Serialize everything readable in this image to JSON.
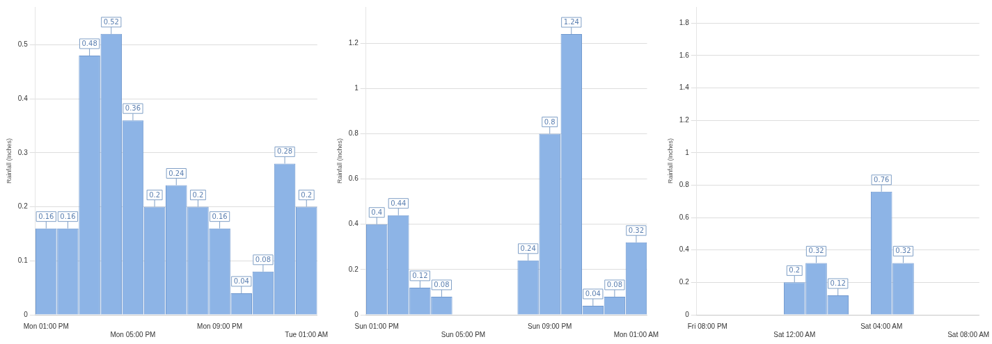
{
  "chart_data": [
    {
      "type": "bar",
      "ylabel": "Rainfall (Inches)",
      "categories": [
        "Mon 01:00 PM",
        null,
        null,
        null,
        "Mon 05:00 PM",
        null,
        null,
        null,
        "Mon 09:00 PM",
        null,
        null,
        null,
        "Tue 01:00 AM"
      ],
      "values": [
        0.16,
        0.16,
        0.48,
        0.52,
        0.36,
        0.2,
        0.24,
        0.2,
        0.16,
        0.04,
        0.08,
        0.28,
        0.2
      ],
      "color": "#8db4e6",
      "ylim": [
        0,
        0.57
      ],
      "yticks": [
        0,
        0.1,
        0.2,
        0.3,
        0.4,
        0.5
      ],
      "grid": "y",
      "data_labels": true
    },
    {
      "type": "bar",
      "ylabel": "Rainfall (Inches)",
      "categories": [
        "Sun 01:00 PM",
        null,
        null,
        null,
        "Sun 05:00 PM",
        null,
        null,
        null,
        "Sun 09:00 PM",
        null,
        null,
        null,
        "Mon 01:00 AM"
      ],
      "values": [
        0.4,
        0.44,
        0.12,
        0.08,
        null,
        null,
        null,
        0.24,
        0.8,
        1.24,
        0.04,
        0.08,
        0.32
      ],
      "color": "#8db4e6",
      "ylim": [
        0,
        1.36
      ],
      "yticks": [
        0,
        0.2,
        0.4,
        0.6,
        0.8,
        1,
        1.2
      ],
      "grid": "y",
      "data_labels": true
    },
    {
      "type": "bar",
      "ylabel": "Rainfall (Inches)",
      "categories": [
        "Fri 08:00 PM",
        null,
        null,
        null,
        "Sat 12:00 AM",
        null,
        null,
        null,
        "Sat 04:00 AM",
        null,
        null,
        null,
        "Sat 08:00 AM"
      ],
      "values": [
        null,
        null,
        null,
        null,
        0.2,
        0.32,
        0.12,
        null,
        0.76,
        0.32,
        null,
        null,
        null
      ],
      "color": "#8db4e6",
      "ylim": [
        0,
        1.9
      ],
      "yticks": [
        0,
        0.2,
        0.4,
        0.6,
        0.8,
        1,
        1.2,
        1.4,
        1.6,
        1.8
      ],
      "grid": "y",
      "data_labels": true
    }
  ]
}
